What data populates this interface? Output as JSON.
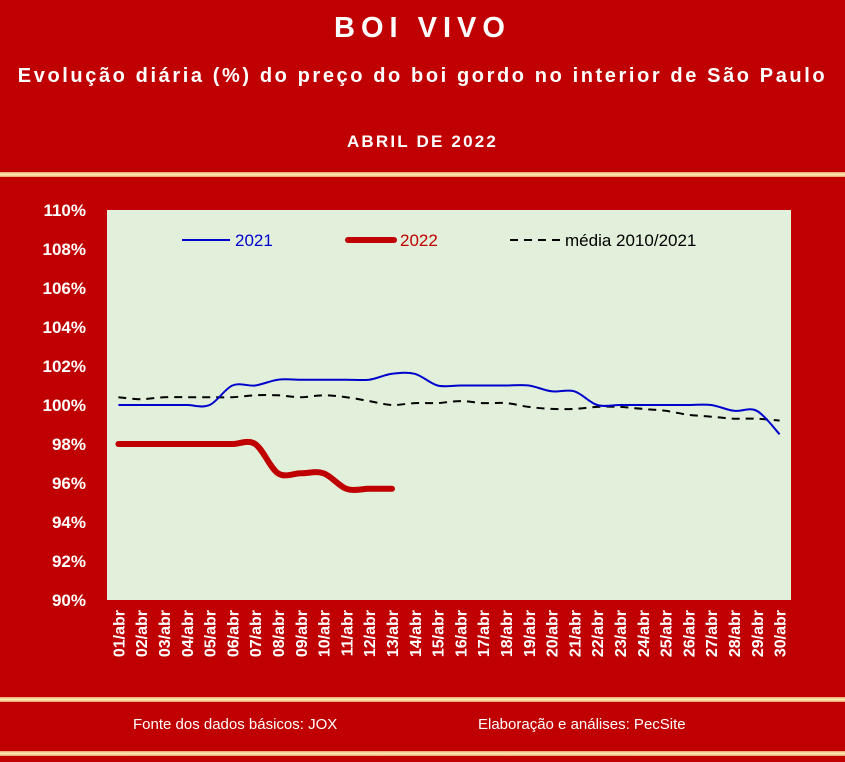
{
  "header": {
    "title": "BOI VIVO",
    "subtitle": "Evolução diária (%) do preço do boi gordo no interior de São Paulo",
    "period": "ABRIL DE 2022"
  },
  "footer": {
    "source": "Fonte dos dados básicos: JOX",
    "credit": "Elaboração e análises: PecSite"
  },
  "colors": {
    "background": "#c00000",
    "plot_area": "#e2efda",
    "series_2021": "#0000cc",
    "series_2022": "#c00000",
    "media": "#000000"
  },
  "chart_data": {
    "type": "line",
    "title": "",
    "xlabel": "",
    "ylabel": "",
    "ylim": [
      90,
      110
    ],
    "yticks": [
      "90%",
      "92%",
      "94%",
      "96%",
      "98%",
      "100%",
      "102%",
      "104%",
      "106%",
      "108%",
      "110%"
    ],
    "categories": [
      "01/abr",
      "02/abr",
      "03/abr",
      "04/abr",
      "05/abr",
      "06/abr",
      "07/abr",
      "08/abr",
      "09/abr",
      "10/abr",
      "11/abr",
      "12/abr",
      "13/abr",
      "14/abr",
      "15/abr",
      "16/abr",
      "17/abr",
      "18/abr",
      "19/abr",
      "20/abr",
      "21/abr",
      "22/abr",
      "23/abr",
      "24/abr",
      "25/abr",
      "26/abr",
      "27/abr",
      "28/abr",
      "29/abr",
      "30/abr"
    ],
    "legend_position": "top",
    "grid": false,
    "series": [
      {
        "name": "2021",
        "style": "solid",
        "values": [
          100.0,
          100.0,
          100.0,
          100.0,
          100.0,
          101.0,
          101.0,
          101.3,
          101.3,
          101.3,
          101.3,
          101.3,
          101.6,
          101.6,
          101.0,
          101.0,
          101.0,
          101.0,
          101.0,
          100.7,
          100.7,
          100.0,
          100.0,
          100.0,
          100.0,
          100.0,
          100.0,
          99.7,
          99.7,
          98.5
        ]
      },
      {
        "name": "2022",
        "style": "thick",
        "values": [
          98.0,
          98.0,
          98.0,
          98.0,
          98.0,
          98.0,
          98.0,
          96.5,
          96.5,
          96.5,
          95.7,
          95.7,
          95.7,
          null,
          null,
          null,
          null,
          null,
          null,
          null,
          null,
          null,
          null,
          null,
          null,
          null,
          null,
          null,
          null,
          null
        ]
      },
      {
        "name": "média 2010/2021",
        "style": "dashed",
        "values": [
          100.4,
          100.3,
          100.4,
          100.4,
          100.4,
          100.4,
          100.5,
          100.5,
          100.4,
          100.5,
          100.4,
          100.2,
          100.0,
          100.1,
          100.1,
          100.2,
          100.1,
          100.1,
          99.9,
          99.8,
          99.8,
          99.9,
          99.9,
          99.8,
          99.7,
          99.5,
          99.4,
          99.3,
          99.3,
          99.2
        ]
      }
    ]
  }
}
